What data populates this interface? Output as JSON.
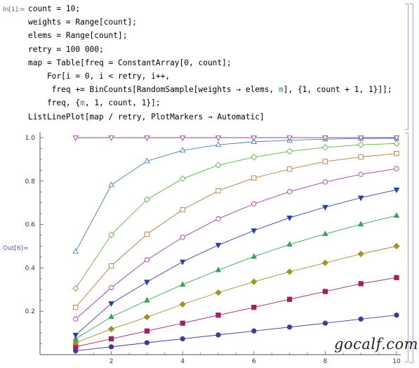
{
  "notebook": {
    "in_label": "In[1]:=",
    "out_label": "Out[6]=",
    "code_lines": [
      [
        {
          "t": "count = 10;"
        }
      ],
      [
        {
          "t": "weights = Range[count];"
        }
      ],
      [
        {
          "t": "elems = Range[count];"
        }
      ],
      [
        {
          "t": "retry = 100 000;"
        }
      ],
      [
        {
          "t": "map = Table[freq = ConstantArray[0, count];"
        }
      ],
      [
        {
          "t": "    For[i = 0, i < retry, i++,"
        }
      ],
      [
        {
          "t": "     freq += BinCounts[RandomSample[weights → elems, "
        },
        {
          "t": "m",
          "v": true
        },
        {
          "t": "], {1, count + 1, 1}]];"
        }
      ],
      [
        {
          "t": "    freq, {"
        },
        {
          "t": "m",
          "v": true
        },
        {
          "t": ", 1, count, 1}];"
        }
      ],
      [
        {
          "t": "ListLinePlot[map / retry, PlotMarkers → Automatic]"
        }
      ]
    ]
  },
  "watermark": "gocalf.com",
  "chart_data": {
    "type": "line",
    "x": [
      1,
      2,
      3,
      4,
      5,
      6,
      7,
      8,
      9,
      10
    ],
    "xlim": [
      0,
      10
    ],
    "ylim": [
      0,
      1.0
    ],
    "xticks": [
      2,
      4,
      6,
      8,
      10
    ],
    "yticks": [
      0.2,
      0.4,
      0.6,
      0.8,
      1.0
    ],
    "xtick_labels": [
      "2",
      "4",
      "6",
      "8",
      "10"
    ],
    "ytick_labels": [
      "0.2",
      "0.4",
      "0.6",
      "0.8",
      "1.0"
    ],
    "grid": false,
    "series": [
      {
        "marker": "circle-filled",
        "color": "#3b3b9c",
        "values": [
          0.018,
          0.036,
          0.055,
          0.073,
          0.091,
          0.109,
          0.127,
          0.145,
          0.164,
          0.182
        ]
      },
      {
        "marker": "square-filled",
        "color": "#a02060",
        "values": [
          0.036,
          0.073,
          0.109,
          0.145,
          0.182,
          0.218,
          0.255,
          0.291,
          0.327,
          0.355
        ]
      },
      {
        "marker": "diamond-filled",
        "color": "#a0922a",
        "values": [
          0.055,
          0.118,
          0.173,
          0.232,
          0.286,
          0.336,
          0.382,
          0.423,
          0.464,
          0.5
        ]
      },
      {
        "marker": "triangle-up-filled",
        "color": "#3ea05a",
        "values": [
          0.073,
          0.174,
          0.25,
          0.323,
          0.39,
          0.452,
          0.508,
          0.556,
          0.601,
          0.641
        ]
      },
      {
        "marker": "triangle-down-filled",
        "color": "#2a40a0",
        "values": [
          0.091,
          0.236,
          0.335,
          0.428,
          0.505,
          0.572,
          0.631,
          0.68,
          0.723,
          0.76
        ]
      },
      {
        "marker": "circle-open",
        "color": "#9c3ea6",
        "values": [
          0.164,
          0.309,
          0.437,
          0.541,
          0.626,
          0.695,
          0.751,
          0.796,
          0.831,
          0.857
        ]
      },
      {
        "marker": "square-open",
        "color": "#b67a44",
        "values": [
          0.218,
          0.409,
          0.555,
          0.668,
          0.755,
          0.814,
          0.855,
          0.89,
          0.911,
          0.927
        ]
      },
      {
        "marker": "diamond-open",
        "color": "#5fb04a",
        "values": [
          0.305,
          0.552,
          0.715,
          0.811,
          0.873,
          0.91,
          0.937,
          0.955,
          0.967,
          0.973
        ]
      },
      {
        "marker": "triangle-up-open",
        "color": "#4a7eaa",
        "values": [
          0.475,
          0.782,
          0.892,
          0.941,
          0.967,
          0.981,
          0.988,
          0.993,
          0.996,
          0.997
        ]
      },
      {
        "marker": "triangle-down-open",
        "color": "#9c3ea6",
        "values": [
          1.0,
          1.0,
          1.0,
          1.0,
          1.0,
          1.0,
          1.0,
          1.0,
          1.0,
          1.0
        ]
      }
    ]
  }
}
